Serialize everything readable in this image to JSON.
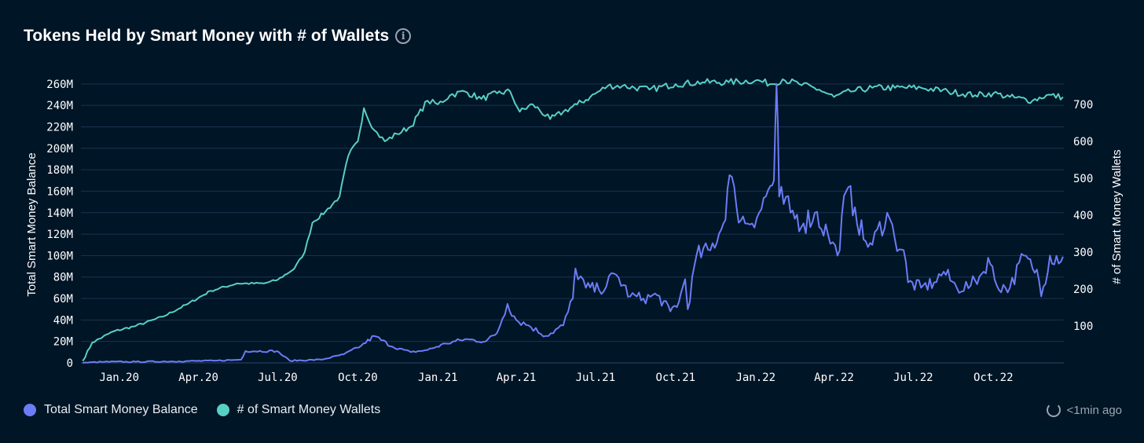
{
  "title": "Tokens Held by Smart Money with # of Wallets",
  "info_icon": "info-icon",
  "legend": [
    {
      "label": "Total Smart Money Balance",
      "color": "#6b7cf5"
    },
    {
      "label": "# of Smart Money Wallets",
      "color": "#58cfc4"
    }
  ],
  "refresh_text": "<1min ago",
  "refresh_icon": "refresh-clock-icon",
  "colors": {
    "background": "#001526",
    "grid": "#1b3450",
    "balance": "#6b7cf5",
    "wallets": "#58cfc4"
  },
  "chart_data": {
    "type": "line",
    "title": "Tokens Held by Smart Money with # of Wallets",
    "ylabel": "Total Smart Money Balance",
    "y2label": "# of Smart Money Wallets",
    "ylim": [
      0,
      265000000
    ],
    "y2lim": [
      0,
      770
    ],
    "yticks": [
      "0",
      "20M",
      "40M",
      "60M",
      "80M",
      "100M",
      "120M",
      "140M",
      "160M",
      "180M",
      "200M",
      "220M",
      "240M",
      "260M"
    ],
    "ytick_values": [
      0,
      20000000,
      40000000,
      60000000,
      80000000,
      100000000,
      120000000,
      140000000,
      160000000,
      180000000,
      200000000,
      220000000,
      240000000,
      260000000
    ],
    "y2ticks": [
      "100",
      "200",
      "300",
      "400",
      "500",
      "600",
      "700"
    ],
    "y2tick_values": [
      100,
      200,
      300,
      400,
      500,
      600,
      700
    ],
    "xticks": [
      "Jan.20",
      "Apr.20",
      "Jul.20",
      "Oct.20",
      "Jan.21",
      "Apr.21",
      "Jul.21",
      "Oct.21",
      "Jan.22",
      "Apr.22",
      "Jul.22",
      "Oct.22"
    ],
    "xtick_dates": [
      "2020-01-01",
      "2020-04-01",
      "2020-07-01",
      "2020-10-01",
      "2021-01-01",
      "2021-04-01",
      "2021-07-01",
      "2021-10-01",
      "2022-01-01",
      "2022-04-01",
      "2022-07-01",
      "2022-10-01"
    ],
    "xlim": [
      "2019-11-18",
      "2022-12-21"
    ],
    "grid": true,
    "legend_position": "bottom-left",
    "series": [
      {
        "name": "Total Smart Money Balance",
        "axis": "left",
        "x": [
          "2019-11-20",
          "2019-12-15",
          "2020-01-20",
          "2020-03-10",
          "2020-04-20",
          "2020-05-20",
          "2020-05-25",
          "2020-06-30",
          "2020-07-15",
          "2020-08-20",
          "2020-09-15",
          "2020-10-05",
          "2020-10-20",
          "2020-11-10",
          "2020-12-01",
          "2020-12-20",
          "2021-01-10",
          "2021-02-01",
          "2021-02-25",
          "2021-03-10",
          "2021-03-22",
          "2021-04-01",
          "2021-04-15",
          "2021-05-05",
          "2021-05-25",
          "2021-06-05",
          "2021-06-08",
          "2021-06-20",
          "2021-07-05",
          "2021-07-25",
          "2021-08-10",
          "2021-08-25",
          "2021-09-10",
          "2021-09-25",
          "2021-10-05",
          "2021-10-12",
          "2021-10-15",
          "2021-10-25",
          "2021-11-10",
          "2021-11-25",
          "2021-12-02",
          "2021-12-10",
          "2021-12-20",
          "2022-01-05",
          "2022-01-18",
          "2022-01-22",
          "2022-01-25",
          "2022-01-28",
          "2022-02-10",
          "2022-02-25",
          "2022-03-10",
          "2022-03-25",
          "2022-04-05",
          "2022-04-15",
          "2022-04-25",
          "2022-05-05",
          "2022-05-15",
          "2022-06-01",
          "2022-06-10",
          "2022-06-20",
          "2022-06-25",
          "2022-07-10",
          "2022-07-25",
          "2022-08-05",
          "2022-08-20",
          "2022-09-05",
          "2022-09-20",
          "2022-09-25",
          "2022-10-05",
          "2022-10-20",
          "2022-11-05",
          "2022-11-15",
          "2022-11-20",
          "2022-11-25",
          "2022-12-05",
          "2022-12-20"
        ],
        "values": [
          0,
          1000000,
          1000000,
          1500000,
          2000000,
          3000000,
          11000000,
          11000000,
          2000000,
          3000000,
          8000000,
          16000000,
          25000000,
          15000000,
          10000000,
          12000000,
          18000000,
          22000000,
          20000000,
          28000000,
          55000000,
          40000000,
          35000000,
          25000000,
          35000000,
          60000000,
          88000000,
          70000000,
          68000000,
          82000000,
          62000000,
          60000000,
          63000000,
          48000000,
          57000000,
          78000000,
          50000000,
          100000000,
          105000000,
          130000000,
          175000000,
          145000000,
          130000000,
          140000000,
          165000000,
          170000000,
          260000000,
          155000000,
          140000000,
          130000000,
          140000000,
          120000000,
          100000000,
          160000000,
          145000000,
          115000000,
          110000000,
          140000000,
          115000000,
          105000000,
          75000000,
          70000000,
          75000000,
          85000000,
          70000000,
          72000000,
          85000000,
          98000000,
          72000000,
          70000000,
          100000000,
          88000000,
          87000000,
          62000000,
          100000000,
          99000000
        ]
      },
      {
        "name": "# of Smart Money Wallets",
        "axis": "right",
        "x": [
          "2019-11-20",
          "2019-12-01",
          "2019-12-25",
          "2020-01-20",
          "2020-02-20",
          "2020-03-20",
          "2020-04-15",
          "2020-05-15",
          "2020-06-15",
          "2020-07-01",
          "2020-07-20",
          "2020-08-01",
          "2020-08-10",
          "2020-08-25",
          "2020-09-10",
          "2020-09-20",
          "2020-10-01",
          "2020-10-08",
          "2020-10-20",
          "2020-11-01",
          "2020-11-15",
          "2020-12-01",
          "2020-12-20",
          "2021-01-01",
          "2021-01-15",
          "2021-02-01",
          "2021-02-20",
          "2021-03-10",
          "2021-03-25",
          "2021-04-05",
          "2021-04-20",
          "2021-05-10",
          "2021-05-25",
          "2021-06-10",
          "2021-06-25",
          "2021-07-15",
          "2021-08-01",
          "2021-09-01",
          "2021-10-01",
          "2021-11-01",
          "2021-12-01",
          "2022-01-01",
          "2022-01-20",
          "2022-02-01",
          "2022-02-20",
          "2022-03-15",
          "2022-04-01",
          "2022-04-20",
          "2022-05-15",
          "2022-06-10",
          "2022-07-10",
          "2022-08-10",
          "2022-09-10",
          "2022-10-01",
          "2022-10-20",
          "2022-11-15",
          "2022-12-01",
          "2022-12-20"
        ],
        "values": [
          5,
          55,
          85,
          100,
          125,
          160,
          195,
          215,
          215,
          225,
          255,
          300,
          380,
          410,
          450,
          560,
          600,
          690,
          630,
          600,
          620,
          640,
          710,
          700,
          725,
          735,
          715,
          730,
          735,
          680,
          700,
          660,
          680,
          700,
          720,
          750,
          750,
          740,
          755,
          760,
          760,
          765,
          755,
          768,
          755,
          740,
          720,
          735,
          745,
          745,
          745,
          735,
          725,
          730,
          720,
          710,
          725,
          720
        ]
      }
    ]
  }
}
